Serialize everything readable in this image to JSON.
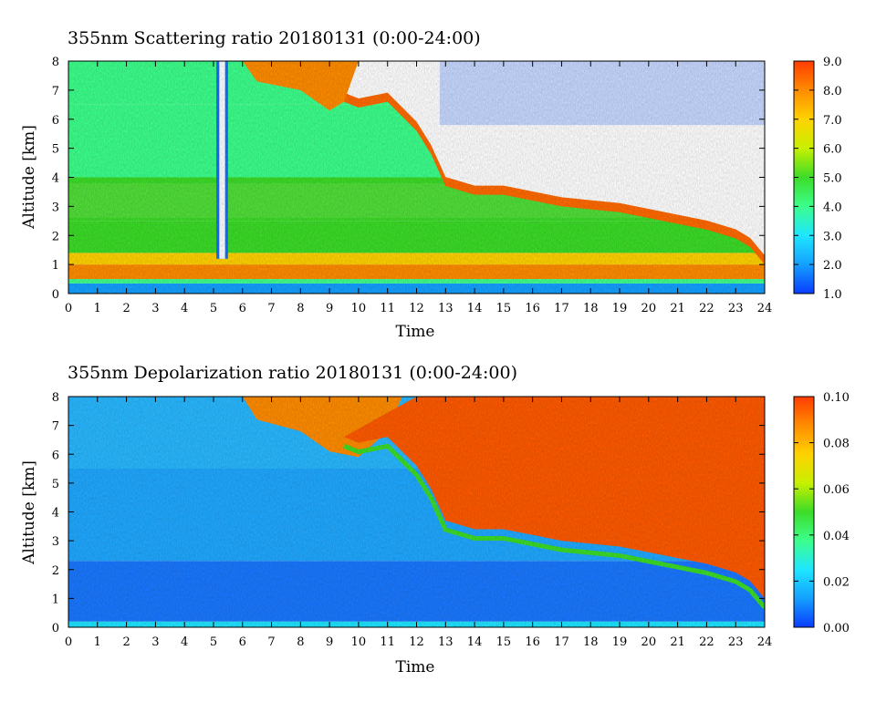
{
  "chart_data": [
    {
      "type": "heatmap",
      "title": "355nm Scattering ratio  20180131 (0:00-24:00)",
      "xlabel": "Time",
      "ylabel": "Altitude [km]",
      "xlim": [
        0,
        24
      ],
      "ylim": [
        0,
        8
      ],
      "x_ticks": [
        0,
        1,
        2,
        3,
        4,
        5,
        6,
        7,
        8,
        9,
        10,
        11,
        12,
        13,
        14,
        15,
        16,
        17,
        18,
        19,
        20,
        21,
        22,
        23,
        24
      ],
      "y_ticks": [
        0,
        1,
        2,
        3,
        4,
        5,
        6,
        7,
        8
      ],
      "colorbar": {
        "range": [
          1.0,
          9.0
        ],
        "ticks": [
          "1.0",
          "2.0",
          "3.0",
          "4.0",
          "5.0",
          "6.0",
          "7.0",
          "8.0",
          "9.0"
        ],
        "colormap": [
          "#0a3cff",
          "#14a0ff",
          "#1ee6ff",
          "#3cff8c",
          "#3cdc28",
          "#c8f000",
          "#ffd200",
          "#ff8c00",
          "#ff3c00"
        ]
      },
      "cloud_base_km": {
        "x": [
          9.5,
          10,
          11,
          12,
          12.5,
          13,
          14,
          15,
          16,
          17,
          18,
          19,
          20,
          21,
          22,
          23,
          23.5,
          24
        ],
        "y": [
          6.6,
          6.4,
          6.6,
          5.6,
          4.8,
          3.7,
          3.4,
          3.4,
          3.2,
          3.0,
          2.9,
          2.8,
          2.6,
          2.4,
          2.2,
          1.9,
          1.6,
          1.0
        ]
      },
      "aerosol_layer_top_km": 1.2
    },
    {
      "type": "heatmap",
      "title": "355nm Depolarization ratio  20180131 (0:00-24:00)",
      "xlabel": "Time",
      "ylabel": "Altitude [km]",
      "xlim": [
        0,
        24
      ],
      "ylim": [
        0,
        8
      ],
      "x_ticks": [
        0,
        1,
        2,
        3,
        4,
        5,
        6,
        7,
        8,
        9,
        10,
        11,
        12,
        13,
        14,
        15,
        16,
        17,
        18,
        19,
        20,
        21,
        22,
        23,
        24
      ],
      "y_ticks": [
        0,
        1,
        2,
        3,
        4,
        5,
        6,
        7,
        8
      ],
      "colorbar": {
        "range": [
          0.0,
          0.1
        ],
        "ticks": [
          "0.00",
          "0.02",
          "0.04",
          "0.06",
          "0.08",
          "0.10"
        ],
        "colormap": [
          "#0a3cff",
          "#14a0ff",
          "#1ee6ff",
          "#3cff8c",
          "#3cdc28",
          "#c8f000",
          "#ffd200",
          "#ff8c00",
          "#ff3c00"
        ]
      },
      "cloud_base_km": {
        "x": [
          9.5,
          10,
          11,
          12,
          12.5,
          13,
          14,
          15,
          16,
          17,
          18,
          19,
          20,
          21,
          22,
          23,
          23.5,
          24
        ],
        "y": [
          6.6,
          6.4,
          6.6,
          5.6,
          4.8,
          3.7,
          3.4,
          3.4,
          3.2,
          3.0,
          2.9,
          2.8,
          2.6,
          2.4,
          2.2,
          1.9,
          1.6,
          1.0
        ]
      }
    }
  ]
}
